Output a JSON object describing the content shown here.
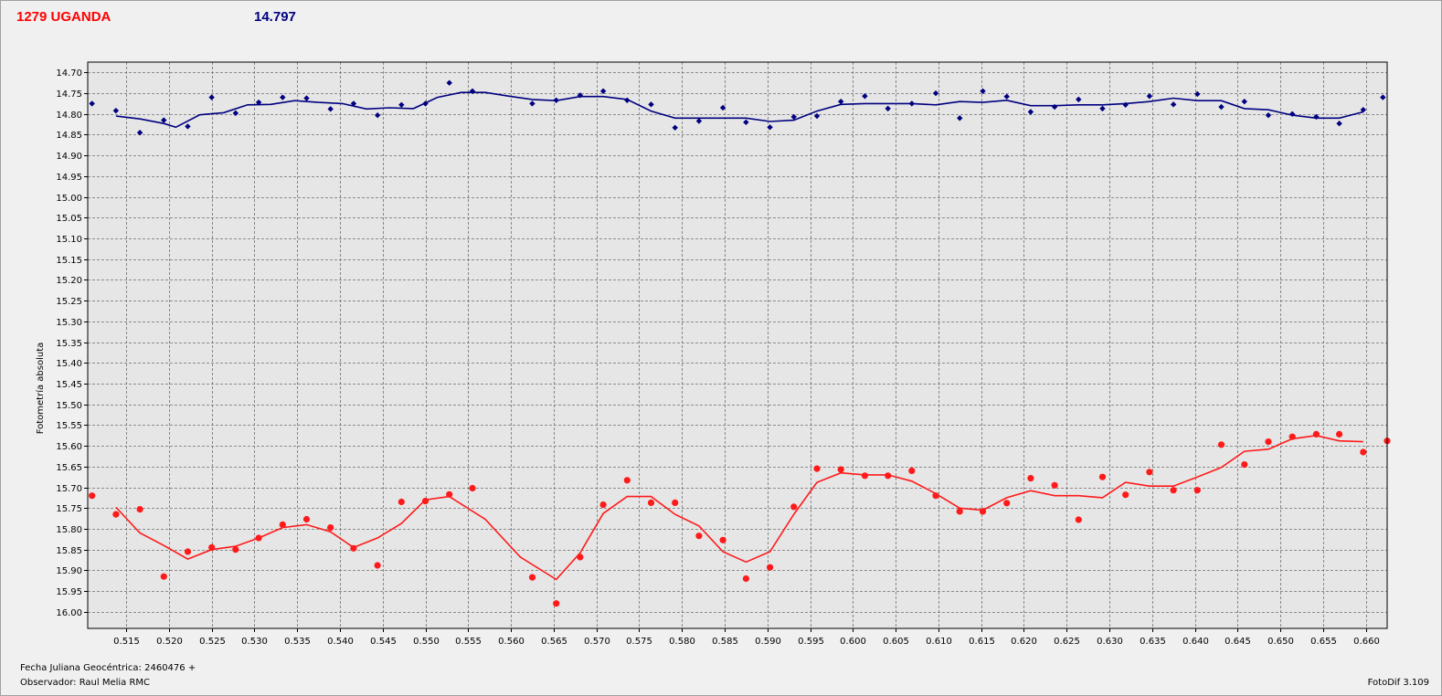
{
  "header": {
    "object_name": "1279 UGANDA",
    "reference_mag": "14.797"
  },
  "footer": {
    "julian_date": "Fecha Juliana Geocéntrica: 2460476 +",
    "observer": "Observador: Raul Melia RMC",
    "software": "FotoDif 3.109"
  },
  "colors": {
    "object": "#ff1a1a",
    "comparison": "#000080",
    "plot_bg": "#e6e6e6",
    "grid": "#707070"
  },
  "chart_data": {
    "type": "scatter",
    "title": "",
    "xlabel": "",
    "ylabel": "Fotometría absoluta",
    "xlim": [
      0.5105,
      0.6625
    ],
    "ylim": [
      14.675,
      16.04
    ],
    "y_inverted": true,
    "grid": true,
    "x_ticks": [
      "0.515",
      "0.520",
      "0.525",
      "0.530",
      "0.535",
      "0.540",
      "0.545",
      "0.550",
      "0.555",
      "0.560",
      "0.565",
      "0.570",
      "0.575",
      "0.580",
      "0.585",
      "0.590",
      "0.595",
      "0.600",
      "0.605",
      "0.610",
      "0.615",
      "0.620",
      "0.625",
      "0.630",
      "0.635",
      "0.640",
      "0.645",
      "0.650",
      "0.655",
      "0.660"
    ],
    "y_ticks": [
      "14.70",
      "14.75",
      "14.80",
      "14.85",
      "14.90",
      "14.95",
      "15.00",
      "15.05",
      "15.10",
      "15.15",
      "15.20",
      "15.25",
      "15.30",
      "15.35",
      "15.40",
      "15.45",
      "15.50",
      "15.55",
      "15.60",
      "15.65",
      "15.70",
      "15.75",
      "15.80",
      "15.85",
      "15.90",
      "15.95",
      "16.00"
    ],
    "series": [
      {
        "role": "comparison",
        "points": [
          [
            0.511,
            14.775
          ],
          [
            0.5138,
            14.792
          ],
          [
            0.5166,
            14.845
          ],
          [
            0.5194,
            14.815
          ],
          [
            0.5222,
            14.83
          ],
          [
            0.525,
            14.76
          ],
          [
            0.5278,
            14.798
          ],
          [
            0.5305,
            14.772
          ],
          [
            0.5333,
            14.76
          ],
          [
            0.5361,
            14.762
          ],
          [
            0.5389,
            14.788
          ],
          [
            0.5416,
            14.775
          ],
          [
            0.5444,
            14.803
          ],
          [
            0.5472,
            14.778
          ],
          [
            0.55,
            14.775
          ],
          [
            0.5528,
            14.725
          ],
          [
            0.5555,
            14.745
          ],
          [
            0.5625,
            14.775
          ],
          [
            0.5653,
            14.767
          ],
          [
            0.5681,
            14.755
          ],
          [
            0.5708,
            14.745
          ],
          [
            0.5736,
            14.767
          ],
          [
            0.5764,
            14.777
          ],
          [
            0.5792,
            14.833
          ],
          [
            0.582,
            14.817
          ],
          [
            0.5848,
            14.785
          ],
          [
            0.5875,
            14.82
          ],
          [
            0.5903,
            14.832
          ],
          [
            0.5931,
            14.807
          ],
          [
            0.5958,
            14.805
          ],
          [
            0.5986,
            14.77
          ],
          [
            0.6014,
            14.757
          ],
          [
            0.6041,
            14.787
          ],
          [
            0.6069,
            14.775
          ],
          [
            0.6097,
            14.75
          ],
          [
            0.6125,
            14.81
          ],
          [
            0.6152,
            14.745
          ],
          [
            0.618,
            14.758
          ],
          [
            0.6208,
            14.795
          ],
          [
            0.6236,
            14.783
          ],
          [
            0.6264,
            14.765
          ],
          [
            0.6292,
            14.787
          ],
          [
            0.6319,
            14.778
          ],
          [
            0.6347,
            14.757
          ],
          [
            0.6375,
            14.777
          ],
          [
            0.6403,
            14.752
          ],
          [
            0.6431,
            14.783
          ],
          [
            0.6458,
            14.77
          ],
          [
            0.6486,
            14.803
          ],
          [
            0.6514,
            14.8
          ],
          [
            0.6542,
            14.807
          ],
          [
            0.6569,
            14.823
          ],
          [
            0.6597,
            14.79
          ],
          [
            0.662,
            14.76
          ]
        ],
        "trend": [
          [
            0.5138,
            14.805
          ],
          [
            0.5166,
            14.812
          ],
          [
            0.5194,
            14.823
          ],
          [
            0.5208,
            14.832
          ],
          [
            0.5236,
            14.802
          ],
          [
            0.5264,
            14.797
          ],
          [
            0.5292,
            14.778
          ],
          [
            0.5319,
            14.777
          ],
          [
            0.5347,
            14.768
          ],
          [
            0.5375,
            14.772
          ],
          [
            0.5403,
            14.775
          ],
          [
            0.5431,
            14.788
          ],
          [
            0.5458,
            14.785
          ],
          [
            0.5486,
            14.787
          ],
          [
            0.5514,
            14.76
          ],
          [
            0.5542,
            14.748
          ],
          [
            0.557,
            14.748
          ],
          [
            0.5597,
            14.757
          ],
          [
            0.5625,
            14.765
          ],
          [
            0.5653,
            14.768
          ],
          [
            0.5681,
            14.758
          ],
          [
            0.5708,
            14.758
          ],
          [
            0.5736,
            14.765
          ],
          [
            0.5764,
            14.793
          ],
          [
            0.5792,
            14.81
          ],
          [
            0.582,
            14.81
          ],
          [
            0.5848,
            14.81
          ],
          [
            0.5875,
            14.81
          ],
          [
            0.5903,
            14.818
          ],
          [
            0.5931,
            14.815
          ],
          [
            0.5958,
            14.793
          ],
          [
            0.5986,
            14.777
          ],
          [
            0.6014,
            14.775
          ],
          [
            0.6041,
            14.775
          ],
          [
            0.6069,
            14.775
          ],
          [
            0.6097,
            14.778
          ],
          [
            0.6125,
            14.77
          ],
          [
            0.6152,
            14.772
          ],
          [
            0.618,
            14.767
          ],
          [
            0.6208,
            14.78
          ],
          [
            0.6236,
            14.78
          ],
          [
            0.6264,
            14.778
          ],
          [
            0.6292,
            14.778
          ],
          [
            0.6319,
            14.775
          ],
          [
            0.6347,
            14.77
          ],
          [
            0.6375,
            14.762
          ],
          [
            0.6403,
            14.768
          ],
          [
            0.6431,
            14.768
          ],
          [
            0.6458,
            14.787
          ],
          [
            0.6486,
            14.79
          ],
          [
            0.6514,
            14.803
          ],
          [
            0.6542,
            14.81
          ],
          [
            0.6569,
            14.81
          ],
          [
            0.6597,
            14.795
          ]
        ]
      },
      {
        "role": "object",
        "points": [
          [
            0.511,
            15.72
          ],
          [
            0.5138,
            15.765
          ],
          [
            0.5166,
            15.753
          ],
          [
            0.5194,
            15.915
          ],
          [
            0.5222,
            15.855
          ],
          [
            0.525,
            15.845
          ],
          [
            0.5278,
            15.85
          ],
          [
            0.5305,
            15.822
          ],
          [
            0.5333,
            15.79
          ],
          [
            0.5361,
            15.777
          ],
          [
            0.5389,
            15.797
          ],
          [
            0.5416,
            15.847
          ],
          [
            0.5444,
            15.888
          ],
          [
            0.5472,
            15.735
          ],
          [
            0.55,
            15.733
          ],
          [
            0.5528,
            15.717
          ],
          [
            0.5555,
            15.702
          ],
          [
            0.5625,
            15.917
          ],
          [
            0.5653,
            15.98
          ],
          [
            0.5681,
            15.868
          ],
          [
            0.5708,
            15.742
          ],
          [
            0.5736,
            15.683
          ],
          [
            0.5764,
            15.737
          ],
          [
            0.5792,
            15.737
          ],
          [
            0.582,
            15.817
          ],
          [
            0.5848,
            15.827
          ],
          [
            0.5875,
            15.92
          ],
          [
            0.5903,
            15.893
          ],
          [
            0.5931,
            15.747
          ],
          [
            0.5958,
            15.655
          ],
          [
            0.5986,
            15.657
          ],
          [
            0.6014,
            15.672
          ],
          [
            0.6041,
            15.672
          ],
          [
            0.6069,
            15.66
          ],
          [
            0.6097,
            15.72
          ],
          [
            0.6125,
            15.758
          ],
          [
            0.6152,
            15.758
          ],
          [
            0.618,
            15.738
          ],
          [
            0.6208,
            15.678
          ],
          [
            0.6236,
            15.695
          ],
          [
            0.6264,
            15.778
          ],
          [
            0.6292,
            15.675
          ],
          [
            0.6319,
            15.718
          ],
          [
            0.6347,
            15.663
          ],
          [
            0.6375,
            15.707
          ],
          [
            0.6403,
            15.707
          ],
          [
            0.6431,
            15.597
          ],
          [
            0.6458,
            15.645
          ],
          [
            0.6486,
            15.59
          ],
          [
            0.6514,
            15.578
          ],
          [
            0.6542,
            15.572
          ],
          [
            0.6569,
            15.572
          ],
          [
            0.6597,
            15.615
          ],
          [
            0.6625,
            15.588
          ]
        ],
        "trend": [
          [
            0.5138,
            15.748
          ],
          [
            0.5166,
            15.81
          ],
          [
            0.5194,
            15.84
          ],
          [
            0.5222,
            15.873
          ],
          [
            0.525,
            15.85
          ],
          [
            0.5278,
            15.842
          ],
          [
            0.5305,
            15.822
          ],
          [
            0.5333,
            15.797
          ],
          [
            0.5361,
            15.79
          ],
          [
            0.5389,
            15.807
          ],
          [
            0.5416,
            15.845
          ],
          [
            0.5444,
            15.822
          ],
          [
            0.5472,
            15.787
          ],
          [
            0.55,
            15.73
          ],
          [
            0.5528,
            15.722
          ],
          [
            0.557,
            15.777
          ],
          [
            0.5611,
            15.868
          ],
          [
            0.5653,
            15.922
          ],
          [
            0.5681,
            15.858
          ],
          [
            0.5708,
            15.763
          ],
          [
            0.5736,
            15.722
          ],
          [
            0.5764,
            15.722
          ],
          [
            0.5792,
            15.765
          ],
          [
            0.582,
            15.793
          ],
          [
            0.5848,
            15.855
          ],
          [
            0.5875,
            15.88
          ],
          [
            0.5903,
            15.855
          ],
          [
            0.5931,
            15.765
          ],
          [
            0.5958,
            15.688
          ],
          [
            0.5986,
            15.665
          ],
          [
            0.6014,
            15.67
          ],
          [
            0.6041,
            15.67
          ],
          [
            0.6069,
            15.685
          ],
          [
            0.6097,
            15.715
          ],
          [
            0.6125,
            15.75
          ],
          [
            0.6152,
            15.755
          ],
          [
            0.618,
            15.725
          ],
          [
            0.6208,
            15.708
          ],
          [
            0.6236,
            15.72
          ],
          [
            0.6264,
            15.72
          ],
          [
            0.6292,
            15.725
          ],
          [
            0.6319,
            15.688
          ],
          [
            0.6347,
            15.697
          ],
          [
            0.6375,
            15.697
          ],
          [
            0.6403,
            15.675
          ],
          [
            0.6431,
            15.652
          ],
          [
            0.6458,
            15.613
          ],
          [
            0.6486,
            15.608
          ],
          [
            0.6514,
            15.583
          ],
          [
            0.6542,
            15.575
          ],
          [
            0.6569,
            15.588
          ],
          [
            0.6597,
            15.59
          ]
        ]
      }
    ]
  }
}
